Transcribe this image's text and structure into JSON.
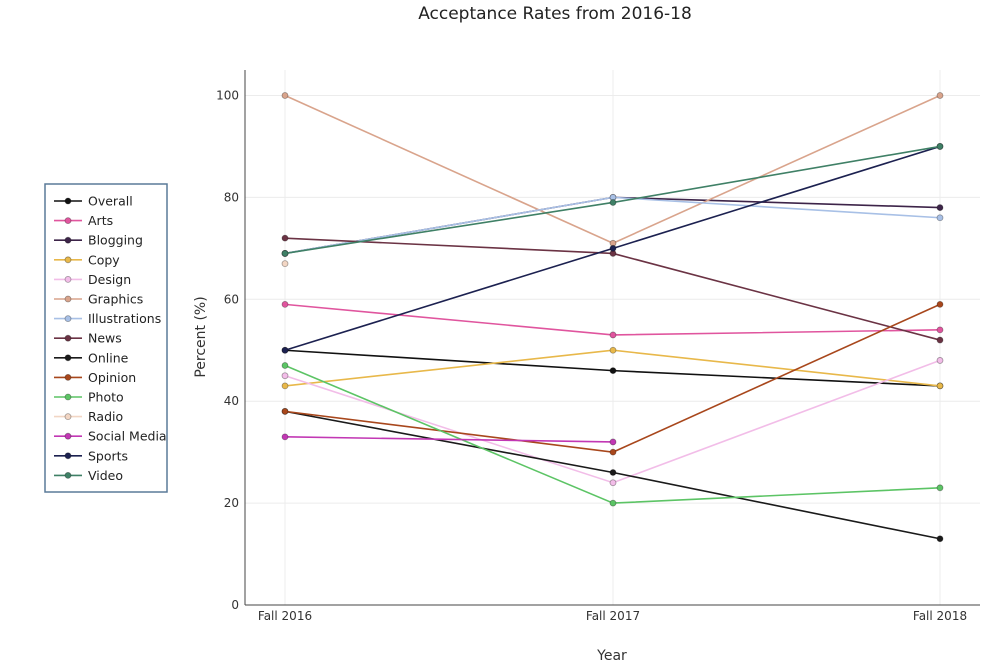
{
  "chart_data": {
    "type": "line",
    "title": "Acceptance Rates from 2016-18",
    "xlabel": "Year",
    "ylabel": "Percent (%)",
    "categories": [
      "Fall 2016",
      "Fall 2017",
      "Fall 2018"
    ],
    "ylim": [
      0,
      105
    ],
    "yticks": [
      0,
      20,
      40,
      60,
      80,
      100
    ],
    "grid": true,
    "legend_position": "left",
    "series": [
      {
        "name": "Overall",
        "color": "#111111",
        "values": [
          50,
          46,
          43
        ]
      },
      {
        "name": "Arts",
        "color": "#e0559e",
        "values": [
          59,
          53,
          54
        ]
      },
      {
        "name": "Blogging",
        "color": "#3d2449",
        "values": [
          69,
          80,
          78
        ]
      },
      {
        "name": "Copy",
        "color": "#e8b84a",
        "values": [
          43,
          50,
          43
        ]
      },
      {
        "name": "Design",
        "color": "#f2bde8",
        "values": [
          45,
          24,
          48
        ]
      },
      {
        "name": "Graphics",
        "color": "#d9a48c",
        "values": [
          100,
          71,
          100
        ]
      },
      {
        "name": "Illustrations",
        "color": "#a8c0e6",
        "values": [
          69,
          80,
          76
        ]
      },
      {
        "name": "News",
        "color": "#6b3344",
        "values": [
          72,
          69,
          52
        ]
      },
      {
        "name": "Online",
        "color": "#1a1a1a",
        "values": [
          38,
          26,
          13
        ]
      },
      {
        "name": "Opinion",
        "color": "#a8471c",
        "values": [
          38,
          30,
          59
        ]
      },
      {
        "name": "Photo",
        "color": "#5cc465",
        "values": [
          47,
          20,
          23
        ]
      },
      {
        "name": "Radio",
        "color": "#f2d6c4",
        "values": [
          67,
          null,
          null
        ]
      },
      {
        "name": "Social Media",
        "color": "#c238b4",
        "values": [
          33,
          32,
          null
        ]
      },
      {
        "name": "Sports",
        "color": "#1c2150",
        "values": [
          50,
          70,
          90
        ]
      },
      {
        "name": "Video",
        "color": "#3f8066",
        "values": [
          69,
          79,
          90
        ]
      }
    ]
  }
}
